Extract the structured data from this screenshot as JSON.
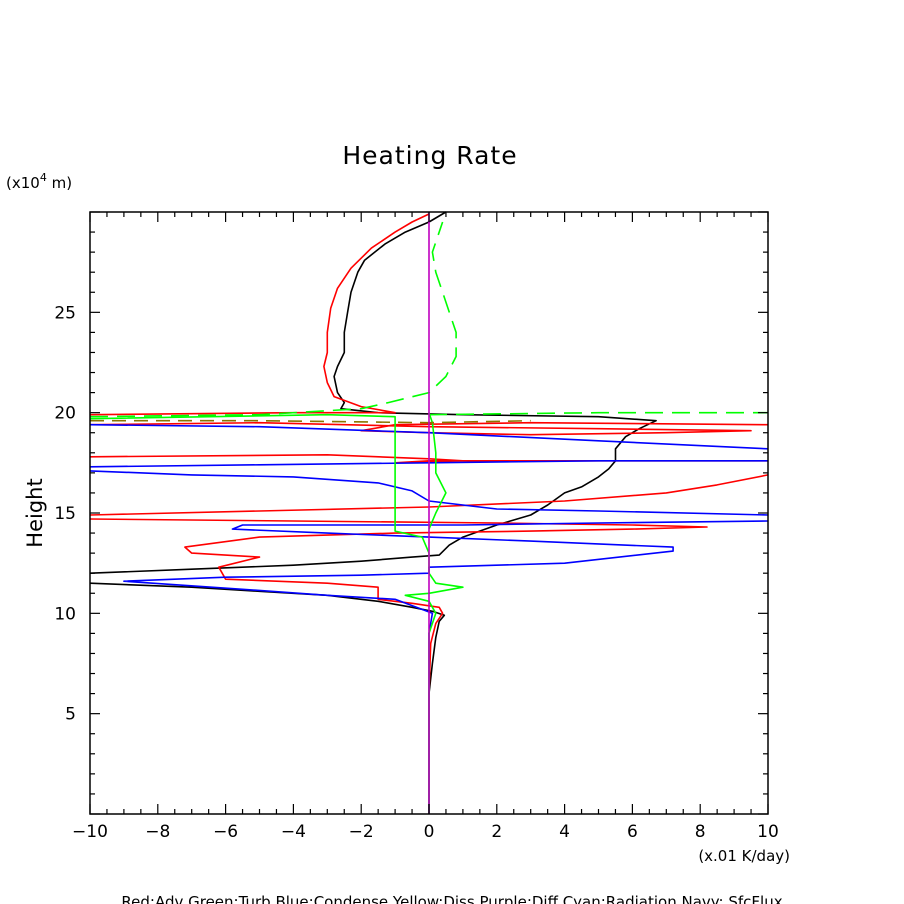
{
  "chart_data": {
    "type": "line",
    "title": "Heating Rate",
    "xlabel": "(x.01 K/day)",
    "ylabel": "Height",
    "y_units_prefix": "(x10",
    "y_units_exp": "4",
    "y_units_suffix": " m)",
    "xlim": [
      -10,
      10
    ],
    "ylim": [
      0,
      30
    ],
    "x_ticks": [
      -10,
      -8,
      -6,
      -4,
      -2,
      0,
      2,
      4,
      6,
      8,
      10
    ],
    "y_ticks": [
      5,
      10,
      15,
      20,
      25
    ],
    "legend_text": "Red:Adv  Green:Turb  Blue:Condense  Yellow:Diss  Purple:Diff  Cyan:Radiation  Navy: SfcFlux",
    "series": [
      {
        "name": "Total (black)",
        "color": "#000000",
        "dash": "",
        "points": [
          [
            0,
            0
          ],
          [
            0,
            4
          ],
          [
            0,
            6
          ],
          [
            0.1,
            7.5
          ],
          [
            0.2,
            8.8
          ],
          [
            0.3,
            9.6
          ],
          [
            0.45,
            9.9
          ],
          [
            0.1,
            10.1
          ],
          [
            -0.5,
            10.3
          ],
          [
            -1.5,
            10.6
          ],
          [
            -3,
            10.9
          ],
          [
            -5,
            11.1
          ],
          [
            -7,
            11.3
          ],
          [
            -10,
            11.5
          ],
          null,
          [
            -10,
            12
          ],
          [
            -7,
            12.2
          ],
          [
            -4,
            12.4
          ],
          [
            -2,
            12.6
          ],
          [
            -0.5,
            12.8
          ],
          [
            0.3,
            12.9
          ],
          [
            0.6,
            13.4
          ],
          [
            1,
            13.8
          ],
          [
            2,
            14.4
          ],
          [
            3,
            14.9
          ],
          [
            3.5,
            15.4
          ],
          [
            4,
            16
          ],
          [
            4.5,
            16.3
          ],
          [
            5,
            16.8
          ],
          [
            5.3,
            17.2
          ],
          [
            5.5,
            17.6
          ],
          [
            5.5,
            18.2
          ],
          [
            5.8,
            18.8
          ],
          [
            6.2,
            19.2
          ],
          [
            6.7,
            19.6
          ],
          [
            5,
            19.8
          ],
          [
            1,
            19.9
          ],
          [
            -1.5,
            20
          ],
          [
            -2.6,
            20.2
          ],
          [
            -2.5,
            20.5
          ],
          [
            -2.7,
            21
          ],
          [
            -2.8,
            21.8
          ],
          [
            -2.7,
            22.3
          ],
          [
            -2.5,
            23
          ],
          [
            -2.5,
            24
          ],
          [
            -2.4,
            25
          ],
          [
            -2.3,
            26
          ],
          [
            -2.1,
            27
          ],
          [
            -1.9,
            27.6
          ],
          [
            -1.3,
            28.4
          ],
          [
            -0.7,
            29
          ],
          [
            0,
            29.5
          ],
          [
            0.5,
            30
          ]
        ]
      },
      {
        "name": "Red:Adv",
        "color": "#ff0000",
        "dash": "",
        "points": [
          [
            0,
            0
          ],
          [
            0,
            6
          ],
          [
            0.05,
            8.5
          ],
          [
            0.2,
            9.5
          ],
          [
            0.4,
            10
          ],
          [
            0.3,
            10.3
          ],
          [
            -0.5,
            10.5
          ],
          [
            -1.5,
            10.7
          ],
          [
            -1.5,
            11.3
          ],
          [
            -3,
            11.5
          ],
          [
            -6,
            11.7
          ],
          [
            -6.2,
            12.3
          ],
          [
            -5,
            12.8
          ],
          [
            -7,
            13
          ],
          [
            -7.2,
            13.3
          ],
          [
            -5,
            13.8
          ],
          [
            -1,
            14
          ],
          [
            3,
            14.1
          ],
          [
            6,
            14.2
          ],
          [
            8.2,
            14.3
          ],
          [
            6,
            14.4
          ],
          [
            2,
            14.5
          ],
          [
            -4,
            14.6
          ],
          [
            -10,
            14.7
          ],
          null,
          [
            -10,
            14.9
          ],
          [
            -5,
            15.1
          ],
          [
            0,
            15.3
          ],
          [
            4,
            15.6
          ],
          [
            7,
            16
          ],
          [
            8.5,
            16.4
          ],
          [
            10,
            16.9
          ],
          null,
          [
            -10,
            17.8
          ],
          [
            -3,
            17.9
          ],
          [
            0,
            17.7
          ],
          [
            1,
            17.6
          ],
          [
            -1,
            17.5
          ],
          [
            0,
            17.6
          ],
          [
            10,
            17.6
          ],
          null,
          [
            -10,
            19.4
          ],
          [
            -5,
            19.5
          ],
          [
            0,
            19.3
          ],
          [
            5,
            19.2
          ],
          [
            9.5,
            19.1
          ],
          [
            7,
            19
          ],
          [
            3,
            18.9
          ],
          [
            0,
            19
          ],
          [
            -2,
            19.1
          ],
          [
            -1,
            19.4
          ],
          [
            3,
            19.5
          ],
          [
            10,
            19.4
          ],
          null,
          [
            -10,
            19.9
          ],
          [
            -4,
            20
          ],
          [
            -1,
            20
          ],
          [
            -2,
            20.3
          ],
          [
            -2.8,
            20.8
          ],
          [
            -3,
            21.5
          ],
          [
            -3.1,
            22.3
          ],
          [
            -3,
            23
          ],
          [
            -3,
            24
          ],
          [
            -2.9,
            25.2
          ],
          [
            -2.7,
            26.2
          ],
          [
            -2.3,
            27.2
          ],
          [
            -1.7,
            28.2
          ],
          [
            -1,
            29
          ],
          [
            -0.5,
            29.5
          ],
          [
            0,
            29.9
          ]
        ]
      },
      {
        "name": "Blue:Condense",
        "color": "#0000ff",
        "dash": "",
        "points": [
          [
            0,
            0
          ],
          [
            0,
            9
          ],
          [
            0.1,
            10
          ],
          [
            -1,
            10.7
          ],
          [
            -3,
            10.9
          ],
          [
            -5.5,
            11.2
          ],
          [
            -9,
            11.6
          ],
          [
            -6,
            11.8
          ],
          [
            -2,
            11.9
          ],
          [
            0,
            12
          ],
          [
            0,
            12.3
          ],
          [
            4,
            12.5
          ],
          [
            7.2,
            13.1
          ],
          [
            7.2,
            13.3
          ],
          [
            3,
            13.6
          ],
          [
            0,
            13.8
          ],
          [
            -3,
            14
          ],
          [
            -5.8,
            14.2
          ],
          [
            -5.5,
            14.4
          ],
          [
            1,
            14.4
          ],
          [
            5,
            14.5
          ],
          [
            10,
            14.6
          ],
          null,
          [
            10,
            14.9
          ],
          [
            5,
            15.1
          ],
          [
            2,
            15.2
          ],
          [
            0,
            15.6
          ],
          [
            -0.5,
            16.1
          ],
          [
            -1.5,
            16.5
          ],
          [
            -4,
            16.8
          ],
          [
            -7,
            16.9
          ],
          [
            -10,
            17.1
          ],
          null,
          [
            -10,
            17.3
          ],
          [
            -5,
            17.4
          ],
          [
            0,
            17.5
          ],
          [
            5,
            17.6
          ],
          [
            10,
            17.6
          ],
          null,
          [
            10,
            18.2
          ],
          [
            5,
            18.6
          ],
          [
            0,
            19
          ],
          [
            -5,
            19.3
          ],
          [
            -10,
            19.4
          ]
        ]
      },
      {
        "name": "Green:Turb",
        "color": "#00ff00",
        "dash": "",
        "points": [
          [
            0,
            0
          ],
          [
            0,
            5
          ],
          [
            0,
            9
          ],
          [
            0.2,
            10
          ],
          [
            0,
            10.6
          ],
          [
            -0.7,
            10.9
          ],
          [
            0,
            11
          ],
          [
            1,
            11.3
          ],
          [
            0.2,
            11.5
          ],
          [
            0,
            12
          ],
          [
            0,
            13
          ],
          [
            -0.2,
            13.8
          ],
          [
            -1,
            14.1
          ],
          [
            -1,
            19.8
          ],
          [
            -3,
            19.9
          ],
          [
            -10,
            19.7
          ],
          null,
          [
            0,
            14.2
          ],
          [
            0.2,
            15
          ],
          [
            0.5,
            16
          ],
          [
            0.2,
            17
          ],
          [
            0.2,
            18
          ],
          [
            0.1,
            19.5
          ],
          [
            0,
            20
          ]
        ]
      },
      {
        "name": "Green dashed",
        "color": "#00ff00",
        "dash": "18 9",
        "points": [
          [
            -10,
            19.8
          ],
          [
            -5,
            19.9
          ],
          [
            -2,
            20.2
          ],
          [
            -1.2,
            20.5
          ],
          [
            0,
            21
          ],
          [
            0.5,
            21.8
          ],
          [
            0.8,
            22.8
          ],
          [
            0.8,
            24
          ],
          [
            0.6,
            25
          ],
          [
            0.4,
            26
          ],
          [
            0.2,
            27
          ],
          [
            0.1,
            28
          ],
          [
            0.4,
            29.5
          ]
        ],
        "extra": [
          [
            0,
            19.9
          ],
          [
            5,
            20
          ],
          [
            10,
            20
          ]
        ]
      },
      {
        "name": "Dark dashed (olive)",
        "color": "#8b7500",
        "dash": "14 8",
        "points": [
          [
            -10,
            19.6
          ],
          [
            -5,
            19.6
          ],
          [
            0,
            19.5
          ],
          [
            3,
            19.6
          ]
        ]
      },
      {
        "name": "Purple:Diff",
        "color": "#c000c0",
        "dash": "",
        "points": [
          [
            0,
            0
          ],
          [
            0,
            30
          ]
        ]
      }
    ]
  }
}
